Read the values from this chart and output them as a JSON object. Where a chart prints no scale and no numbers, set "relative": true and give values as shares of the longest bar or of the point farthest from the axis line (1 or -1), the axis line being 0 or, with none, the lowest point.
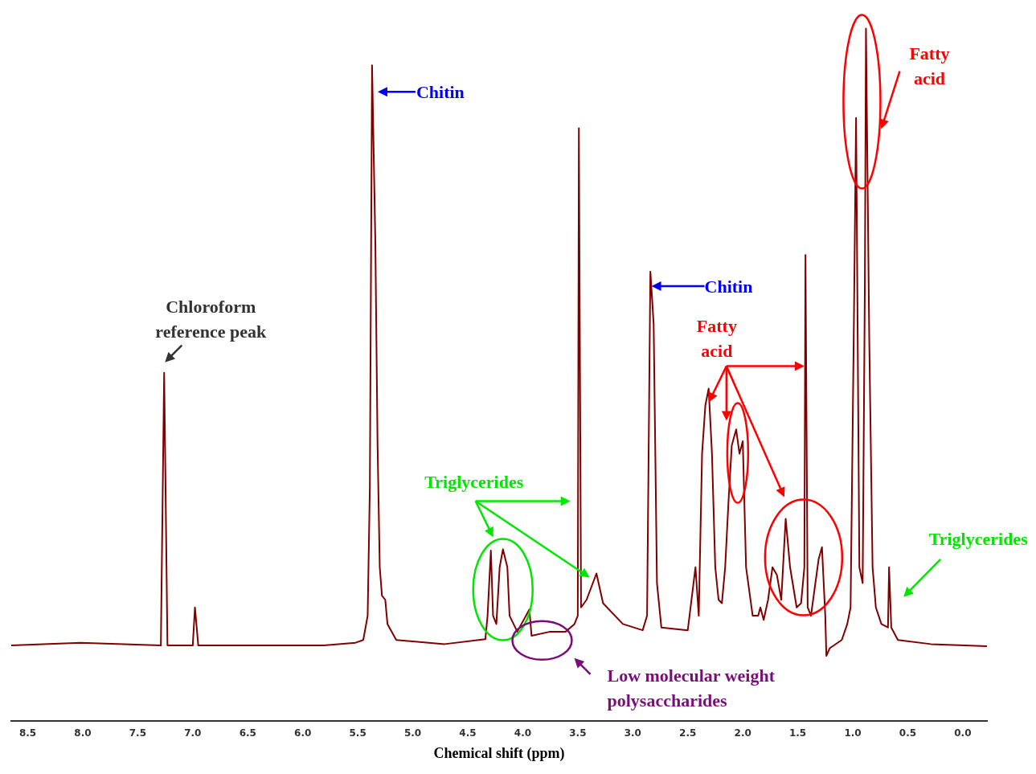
{
  "chart_data": {
    "type": "line",
    "relative": true,
    "xlabel": "Chemical shift (ppm)",
    "color": "#800000",
    "grid": false,
    "legend": false,
    "marker": "none",
    "line_style": "solid",
    "xlim": [
      8.65,
      -0.22
    ],
    "xticks": [
      8.5,
      {
        "value": 8,
        "label": "8.0"
      },
      7.5,
      {
        "value": 7,
        "label": "7.0"
      },
      6.5,
      {
        "value": 6,
        "label": "6.0"
      },
      5.5,
      {
        "value": 5,
        "label": "5.0"
      },
      4.5,
      {
        "value": 4,
        "label": "4.0"
      },
      3.5,
      {
        "value": 3,
        "label": "3.0"
      },
      2.5,
      {
        "value": 2,
        "label": "2.0"
      },
      1.5,
      {
        "value": 1,
        "label": "1.0"
      },
      0.5,
      {
        "value": 0,
        "label": "0.0"
      }
    ],
    "x": [
      8.65,
      8.02,
      7.29,
      7.26,
      7.23,
      7.0,
      6.98,
      6.95,
      6.55,
      5.81,
      5.52,
      5.45,
      5.41,
      5.39,
      5.37,
      5.34,
      5.32,
      5.3,
      5.28,
      5.25,
      5.23,
      5.15,
      4.71,
      4.34,
      4.32,
      4.29,
      4.27,
      4.24,
      4.21,
      4.18,
      4.14,
      4.12,
      4.05,
      3.94,
      3.92,
      3.75,
      3.61,
      3.53,
      3.5,
      3.49,
      3.47,
      3.42,
      3.33,
      3.27,
      3.09,
      2.91,
      2.87,
      2.84,
      2.81,
      2.78,
      2.74,
      2.5,
      2.43,
      2.4,
      2.37,
      2.34,
      2.31,
      2.28,
      2.25,
      2.22,
      2.19,
      2.16,
      2.13,
      2.1,
      2.06,
      2.03,
      2.0,
      1.97,
      1.91,
      1.86,
      1.84,
      1.81,
      1.77,
      1.73,
      1.69,
      1.65,
      1.61,
      1.57,
      1.51,
      1.47,
      1.44,
      1.43,
      1.41,
      1.38,
      1.31,
      1.28,
      1.25,
      1.24,
      1.21,
      1.1,
      1.05,
      1.02,
      0.99,
      0.97,
      0.94,
      0.91,
      0.89,
      0.88,
      0.85,
      0.82,
      0.79,
      0.74,
      0.68,
      0.67,
      0.65,
      0.59,
      0.29,
      -0.22
    ],
    "values": [
      0.109,
      0.113,
      0.109,
      0.503,
      0.109,
      0.109,
      0.164,
      0.109,
      0.109,
      0.109,
      0.113,
      0.117,
      0.152,
      0.339,
      0.947,
      0.69,
      0.398,
      0.222,
      0.181,
      0.175,
      0.14,
      0.117,
      0.111,
      0.118,
      0.152,
      0.246,
      0.152,
      0.14,
      0.222,
      0.248,
      0.222,
      0.152,
      0.129,
      0.161,
      0.123,
      0.129,
      0.129,
      0.14,
      0.152,
      0.856,
      0.164,
      0.175,
      0.213,
      0.17,
      0.14,
      0.131,
      0.152,
      0.649,
      0.573,
      0.199,
      0.135,
      0.131,
      0.222,
      0.152,
      0.386,
      0.456,
      0.48,
      0.386,
      0.222,
      0.175,
      0.17,
      0.222,
      0.316,
      0.398,
      0.421,
      0.386,
      0.404,
      0.222,
      0.152,
      0.152,
      0.164,
      0.146,
      0.175,
      0.222,
      0.211,
      0.175,
      0.292,
      0.222,
      0.164,
      0.17,
      0.222,
      0.673,
      0.164,
      0.152,
      0.234,
      0.251,
      0.152,
      0.094,
      0.105,
      0.117,
      0.14,
      0.164,
      0.573,
      0.871,
      0.222,
      0.199,
      0.632,
      1,
      0.55,
      0.222,
      0.164,
      0.14,
      0.135,
      0.222,
      0.135,
      0.117,
      0.111,
      0.108
    ],
    "annotations": [
      {
        "text": "Chloroform reference peak",
        "x": 7.26,
        "y": 0.503
      },
      {
        "text": "Chitin",
        "x": 5.37,
        "y": 0.947
      },
      {
        "text": "Chitin",
        "x": 2.83,
        "y": 0.628
      },
      "Triglycerides",
      "Low molecular weight polysaccharides",
      {
        "text": "Fatty acid",
        "x": 0.88,
        "y": 1
      },
      "Fatty acid",
      {
        "text": "Triglycerides",
        "x": 0.67,
        "y": 0.222
      }
    ]
  }
}
